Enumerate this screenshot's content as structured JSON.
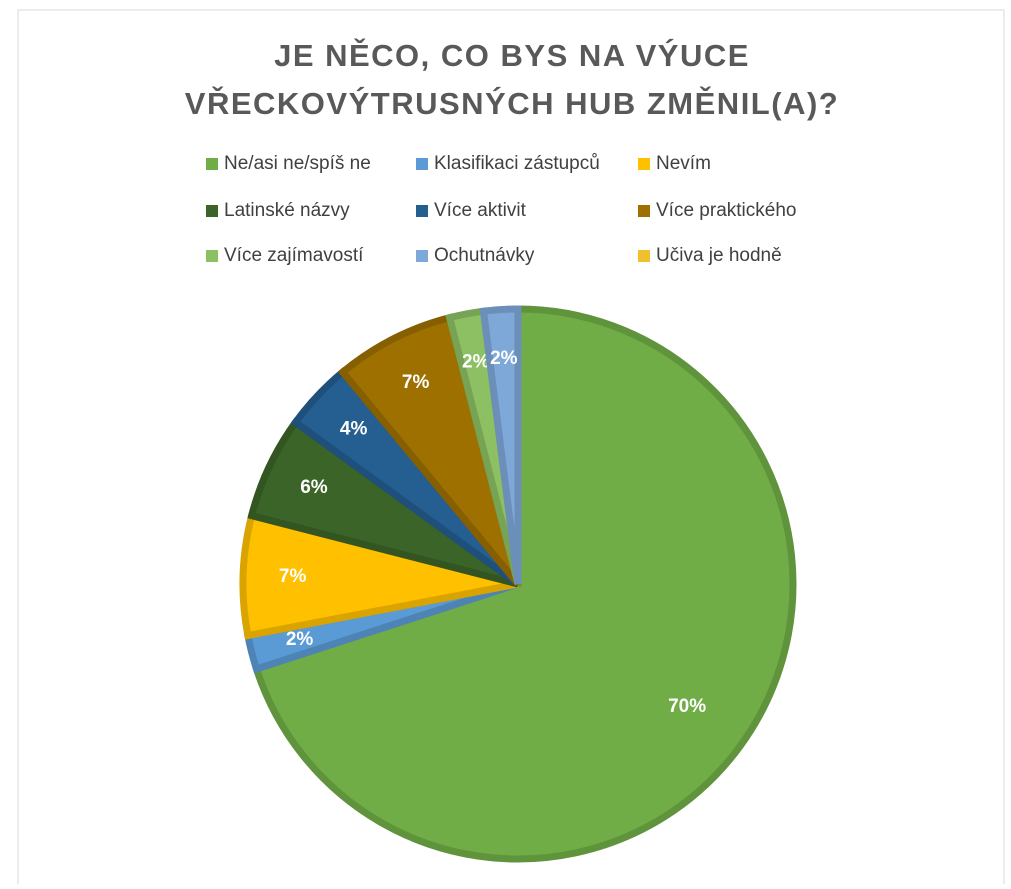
{
  "chart_data": {
    "type": "pie",
    "title": "JE NĚCO, CO BYS NA VÝUCE VŘECKOVÝTRUSNÝCH HUB ZMĚNIL(A)?",
    "categories": [
      "Ne/asi ne/spíš ne",
      "Klasifikaci zástupců",
      "Nevím",
      "Latinské názvy",
      "Více aktivit",
      "Více praktického",
      "Více zajímavostí",
      "Ochutnávky",
      "Učiva je hodně"
    ],
    "values": [
      70,
      2,
      7,
      6,
      4,
      7,
      2,
      2,
      0
    ],
    "value_labels": [
      "70%",
      "2%",
      "7%",
      "6%",
      "4%",
      "7%",
      "2%",
      "2%",
      null
    ],
    "colors": [
      "#70ad47",
      "#5b9bd5",
      "#ffc000",
      "#3b6428",
      "#255e91",
      "#9e7000",
      "#8cc063",
      "#7ea8d8",
      "#f0c02e"
    ],
    "legend": "top"
  }
}
